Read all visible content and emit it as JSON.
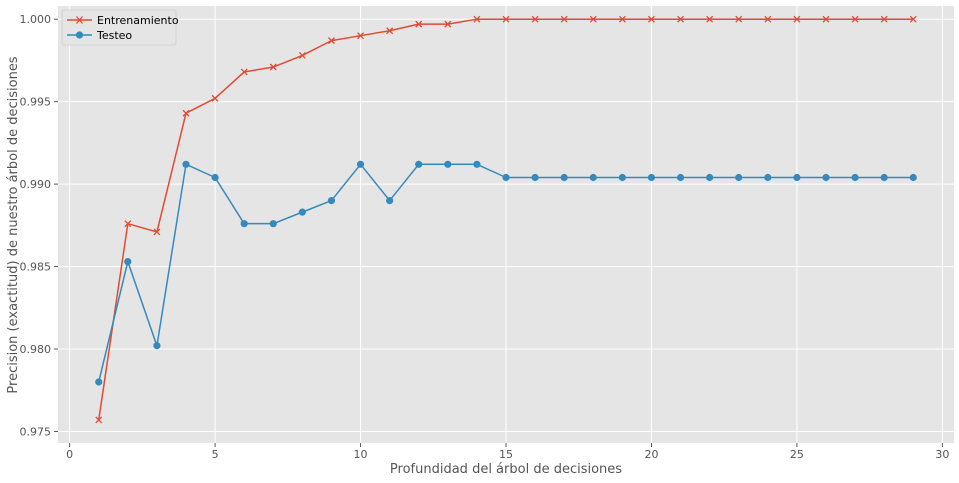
{
  "chart_data": {
    "type": "line",
    "title": "",
    "xlabel": "Profundidad del árbol de decisiones",
    "ylabel": "Precision (exactitud) de nuestro árbol de decisiones",
    "xlim": [
      -0.4,
      30.4
    ],
    "ylim": [
      0.9743,
      1.0008
    ],
    "xticks": [
      0,
      5,
      10,
      15,
      20,
      25,
      30
    ],
    "yticks": [
      0.975,
      0.98,
      0.985,
      0.99,
      0.995,
      1.0
    ],
    "ytick_labels": [
      "0.975",
      "0.980",
      "0.985",
      "0.990",
      "0.995",
      "1.000"
    ],
    "grid": true,
    "legend_position": "upper-left",
    "x": [
      1,
      2,
      3,
      4,
      5,
      6,
      7,
      8,
      9,
      10,
      11,
      12,
      13,
      14,
      15,
      16,
      17,
      18,
      19,
      20,
      21,
      22,
      23,
      24,
      25,
      26,
      27,
      28,
      29
    ],
    "series": [
      {
        "name": "Entrenamiento",
        "color": "#e24a33",
        "marker": "x",
        "values": [
          0.9757,
          0.9876,
          0.9871,
          0.9943,
          0.9952,
          0.9968,
          0.9971,
          0.9978,
          0.9987,
          0.999,
          0.9993,
          0.9997,
          0.9997,
          1.0,
          1.0,
          1.0,
          1.0,
          1.0,
          1.0,
          1.0,
          1.0,
          1.0,
          1.0,
          1.0,
          1.0,
          1.0,
          1.0,
          1.0,
          1.0
        ]
      },
      {
        "name": "Testeo",
        "color": "#348abd",
        "marker": "o",
        "values": [
          0.978,
          0.9853,
          0.9802,
          0.9912,
          0.9904,
          0.9876,
          0.9876,
          0.9883,
          0.989,
          0.9912,
          0.989,
          0.9912,
          0.9912,
          0.9912,
          0.9904,
          0.9904,
          0.9904,
          0.9904,
          0.9904,
          0.9904,
          0.9904,
          0.9904,
          0.9904,
          0.9904,
          0.9904,
          0.9904,
          0.9904,
          0.9904,
          0.9904
        ]
      }
    ]
  }
}
